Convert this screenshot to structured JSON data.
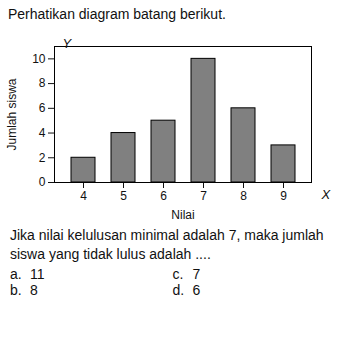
{
  "header": "Perhatikan diagram batang berikut.",
  "chart_data": {
    "type": "bar",
    "categories": [
      "4",
      "5",
      "6",
      "7",
      "8",
      "9"
    ],
    "values": [
      2,
      4,
      5,
      10,
      6,
      3
    ],
    "color": "#808080",
    "xlabel": "Nilai",
    "ylabel": "Jumlah siswa",
    "annotations": [
      "Y",
      "X"
    ],
    "ylim": [
      0,
      11
    ],
    "yticks": [
      0,
      2,
      4,
      6,
      8,
      10
    ],
    "grid": false
  },
  "question": "Jika nilai kelulusan minimal adalah 7, maka jumlah siswa yang tidak lulus adalah ....",
  "options": [
    {
      "label": "a.",
      "text": "11"
    },
    {
      "label": "b.",
      "text": "8"
    },
    {
      "label": "c.",
      "text": "7"
    },
    {
      "label": "d.",
      "text": "6"
    }
  ]
}
